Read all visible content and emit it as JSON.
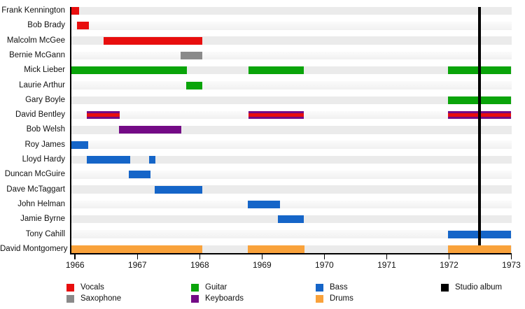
{
  "chart_data": {
    "type": "timeline",
    "title": "",
    "x_domain": [
      1965.93,
      1973.0
    ],
    "x_ticks": [
      1966,
      1967,
      1968,
      1969,
      1970,
      1971,
      1972,
      1973
    ],
    "grid": false,
    "legend_position": "bottom",
    "role_colors": {
      "vocals": "#E80E0E",
      "saxophone": "#8A8A8A",
      "guitar": "#0AA40A",
      "keyboards": "#740B86",
      "bass": "#1565C8",
      "drums": "#F9A23B",
      "studio_album": "#000000"
    },
    "rows": [
      {
        "name": "Frank Kennington",
        "segments": [
          {
            "start": 1965.93,
            "end": 1966.06,
            "roles": [
              "vocals"
            ]
          }
        ]
      },
      {
        "name": "Bob Brady",
        "segments": [
          {
            "start": 1966.03,
            "end": 1966.22,
            "roles": [
              "vocals"
            ]
          }
        ]
      },
      {
        "name": "Malcolm McGee",
        "segments": [
          {
            "start": 1966.46,
            "end": 1968.04,
            "roles": [
              "vocals"
            ]
          }
        ]
      },
      {
        "name": "Bernie McGann",
        "segments": [
          {
            "start": 1967.69,
            "end": 1968.04,
            "roles": [
              "saxophone"
            ]
          }
        ]
      },
      {
        "name": "Mick Lieber",
        "segments": [
          {
            "start": 1965.93,
            "end": 1967.79,
            "roles": [
              "guitar"
            ]
          },
          {
            "start": 1968.78,
            "end": 1969.67,
            "roles": [
              "guitar"
            ]
          },
          {
            "start": 1971.98,
            "end": 1973.0,
            "roles": [
              "guitar"
            ]
          }
        ]
      },
      {
        "name": "Laurie Arthur",
        "segments": [
          {
            "start": 1967.78,
            "end": 1968.04,
            "roles": [
              "guitar"
            ]
          }
        ]
      },
      {
        "name": "Gary Boyle",
        "segments": [
          {
            "start": 1971.98,
            "end": 1973.0,
            "roles": [
              "guitar"
            ]
          }
        ]
      },
      {
        "name": "David Bentley",
        "segments": [
          {
            "start": 1966.19,
            "end": 1966.72,
            "roles": [
              "keyboards",
              "vocals"
            ]
          },
          {
            "start": 1968.78,
            "end": 1969.67,
            "roles": [
              "keyboards",
              "vocals"
            ]
          },
          {
            "start": 1971.98,
            "end": 1973.0,
            "roles": [
              "keyboards",
              "vocals"
            ]
          }
        ]
      },
      {
        "name": "Bob Welsh",
        "segments": [
          {
            "start": 1966.71,
            "end": 1967.71,
            "roles": [
              "keyboards"
            ]
          }
        ]
      },
      {
        "name": "Roy James",
        "segments": [
          {
            "start": 1965.93,
            "end": 1966.21,
            "roles": [
              "bass"
            ]
          }
        ]
      },
      {
        "name": "Lloyd Hardy",
        "segments": [
          {
            "start": 1966.19,
            "end": 1966.88,
            "roles": [
              "bass"
            ]
          },
          {
            "start": 1967.19,
            "end": 1967.29,
            "roles": [
              "bass"
            ]
          }
        ]
      },
      {
        "name": "Duncan McGuire",
        "segments": [
          {
            "start": 1966.86,
            "end": 1967.21,
            "roles": [
              "bass"
            ]
          }
        ]
      },
      {
        "name": "Dave McTaggart",
        "segments": [
          {
            "start": 1967.28,
            "end": 1968.04,
            "roles": [
              "bass"
            ]
          }
        ]
      },
      {
        "name": "John Helman",
        "segments": [
          {
            "start": 1968.77,
            "end": 1969.29,
            "roles": [
              "bass"
            ]
          }
        ]
      },
      {
        "name": "Jamie Byrne",
        "segments": [
          {
            "start": 1969.26,
            "end": 1969.67,
            "roles": [
              "bass"
            ]
          }
        ]
      },
      {
        "name": "Tony Cahill",
        "segments": [
          {
            "start": 1971.98,
            "end": 1973.0,
            "roles": [
              "bass"
            ]
          }
        ]
      },
      {
        "name": "David Montgomery",
        "segments": [
          {
            "start": 1965.93,
            "end": 1968.04,
            "roles": [
              "drums"
            ]
          },
          {
            "start": 1968.77,
            "end": 1969.68,
            "roles": [
              "drums"
            ]
          },
          {
            "start": 1971.98,
            "end": 1973.0,
            "roles": [
              "drums"
            ]
          }
        ]
      }
    ],
    "event_marker": {
      "label": "Studio album",
      "at": 1972.49,
      "role": "studio_album"
    },
    "legend": [
      {
        "label": "Vocals",
        "role": "vocals",
        "row": 0,
        "col": 0
      },
      {
        "label": "Saxophone",
        "role": "saxophone",
        "row": 1,
        "col": 0
      },
      {
        "label": "Guitar",
        "role": "guitar",
        "row": 0,
        "col": 1
      },
      {
        "label": "Keyboards",
        "role": "keyboards",
        "row": 1,
        "col": 1
      },
      {
        "label": "Bass",
        "role": "bass",
        "row": 0,
        "col": 2
      },
      {
        "label": "Drums",
        "role": "drums",
        "row": 1,
        "col": 2
      },
      {
        "label": "Studio album",
        "role": "studio_album",
        "row": 0,
        "col": 3
      }
    ]
  }
}
